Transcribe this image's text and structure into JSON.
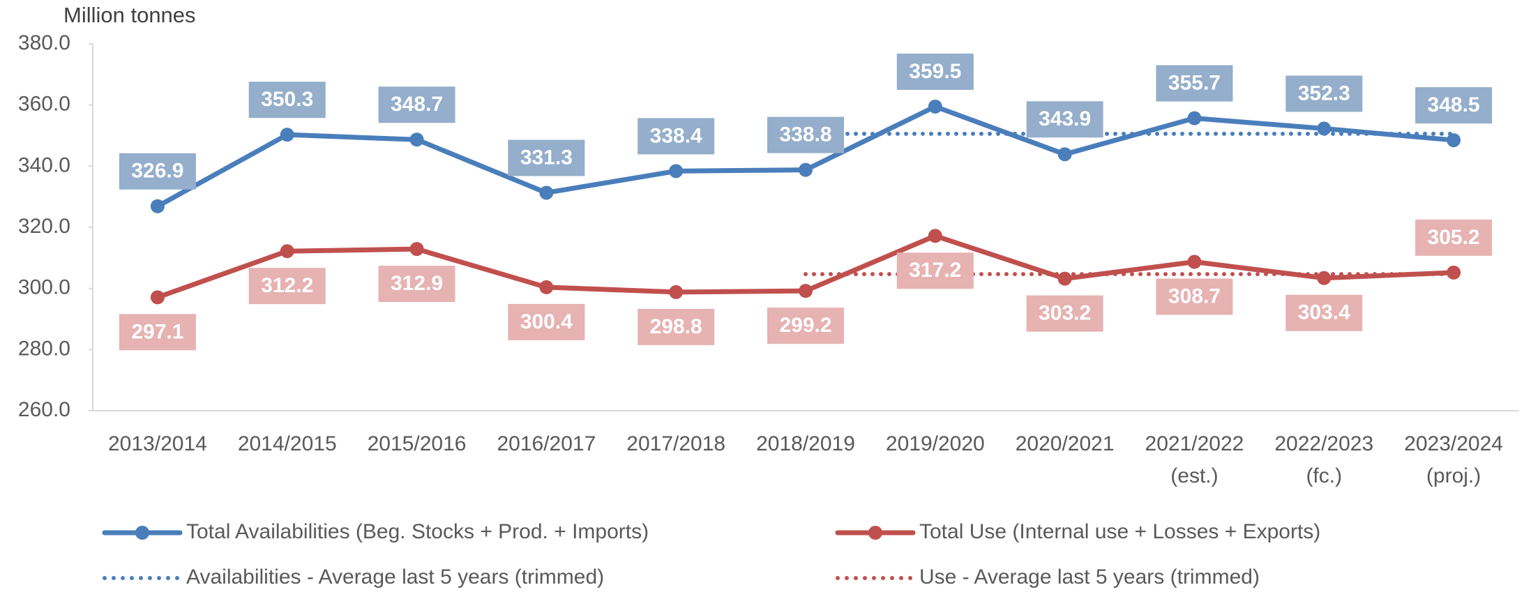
{
  "chart_data": {
    "type": "line",
    "y_axis_label": "Million tonnes",
    "categories": [
      "2013/2014",
      "2014/2015",
      "2015/2016",
      "2016/2017",
      "2017/2018",
      "2018/2019",
      "2019/2020",
      "2020/2021",
      "2021/2022\n(est.)",
      "2022/2023\n(fc.)",
      "2023/2024\n(proj.)"
    ],
    "series": [
      {
        "name": "Total Availabilities (Beg. Stocks + Prod. + Imports)",
        "color": "#4a7ebb",
        "style": "solid",
        "label_color": "#94aecb",
        "values": [
          326.9,
          350.3,
          348.7,
          331.3,
          338.4,
          338.8,
          359.5,
          343.9,
          355.7,
          352.3,
          348.5
        ]
      },
      {
        "name": "Total Use (Internal use + Losses + Exports)",
        "color": "#c0504d",
        "style": "solid",
        "label_color": "#e6b2b2",
        "values": [
          297.1,
          312.2,
          312.9,
          300.4,
          298.8,
          299.2,
          317.2,
          303.2,
          308.7,
          303.4,
          305.2
        ]
      },
      {
        "name": "Availabilities - Average last 5 years (trimmed)",
        "color": "#4a7ebb",
        "style": "dotted",
        "values": [
          null,
          null,
          null,
          null,
          null,
          350.6,
          350.6,
          350.6,
          350.6,
          350.6,
          350.6
        ]
      },
      {
        "name": "Use - Average last 5 years (trimmed)",
        "color": "#c0504d",
        "style": "dotted",
        "values": [
          null,
          null,
          null,
          null,
          null,
          304.7,
          304.7,
          304.7,
          304.7,
          304.7,
          304.7
        ]
      }
    ],
    "ylim": [
      260,
      380
    ],
    "yticks": [
      {
        "value": 260,
        "label": "260.0"
      },
      {
        "value": 280,
        "label": "280.0"
      },
      {
        "value": 300,
        "label": "300.0"
      },
      {
        "value": 320,
        "label": "320.0"
      },
      {
        "value": 340,
        "label": "340.0"
      },
      {
        "value": 360,
        "label": "360.0"
      },
      {
        "value": 380,
        "label": "380.0"
      }
    ],
    "grid": false
  }
}
